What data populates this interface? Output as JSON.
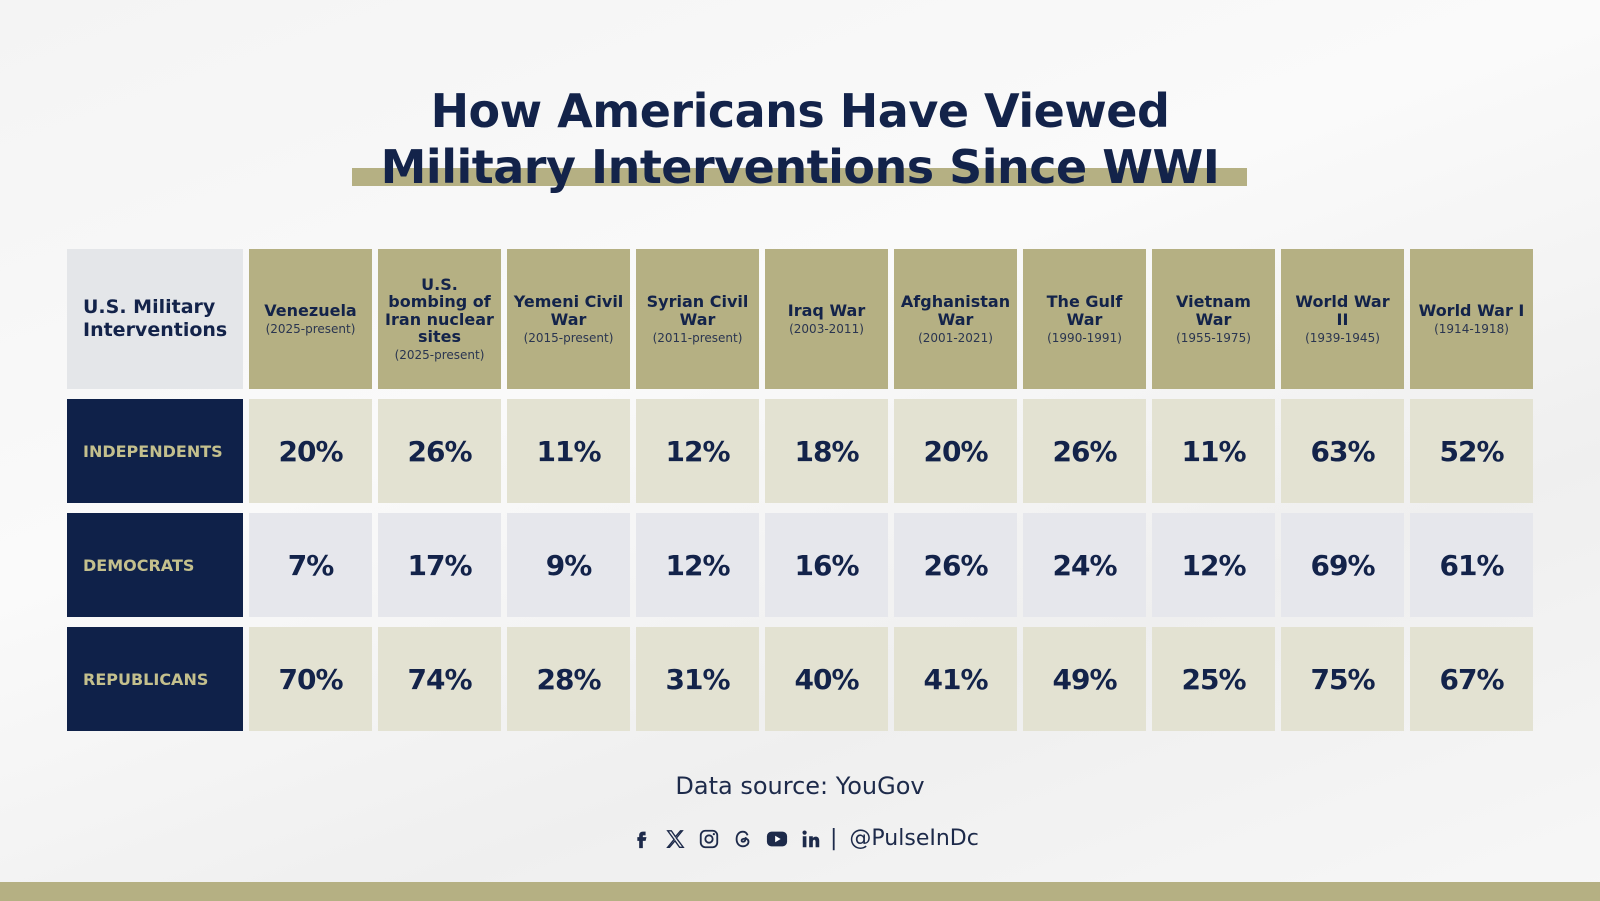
{
  "title": {
    "line1": "How Americans Have Viewed",
    "line2": "Military Interventions Since WWI"
  },
  "table": {
    "corner": "U.S. Military Interventions",
    "columns": [
      {
        "name": "Venezuela",
        "period": "(2025-present)"
      },
      {
        "name": "U.S. bombing of Iran nuclear sites",
        "period": "(2025-present)"
      },
      {
        "name": "Yemeni Civil War",
        "period": "(2015-present)"
      },
      {
        "name": "Syrian Civil War",
        "period": "(2011-present)"
      },
      {
        "name": "Iraq War",
        "period": "(2003-2011)"
      },
      {
        "name": "Afghanistan War",
        "period": "(2001-2021)"
      },
      {
        "name": "The Gulf War",
        "period": "(1990-1991)"
      },
      {
        "name": "Vietnam War",
        "period": "(1955-1975)"
      },
      {
        "name": "World War II",
        "period": "(1939-1945)"
      },
      {
        "name": "World War I",
        "period": "(1914-1918)"
      }
    ],
    "rows": [
      {
        "label": "INDEPENDENTS",
        "cells": [
          "20%",
          "26%",
          "11%",
          "12%",
          "18%",
          "20%",
          "26%",
          "11%",
          "63%",
          "52%"
        ]
      },
      {
        "label": "DEMOCRATS",
        "cells": [
          "7%",
          "17%",
          "9%",
          "12%",
          "16%",
          "26%",
          "24%",
          "12%",
          "69%",
          "61%"
        ]
      },
      {
        "label": "REPUBLICANS",
        "cells": [
          "70%",
          "74%",
          "28%",
          "31%",
          "40%",
          "41%",
          "49%",
          "25%",
          "75%",
          "67%"
        ]
      }
    ]
  },
  "footer": {
    "source": "Data source: YouGov",
    "handle": "@PulseInDc"
  }
}
